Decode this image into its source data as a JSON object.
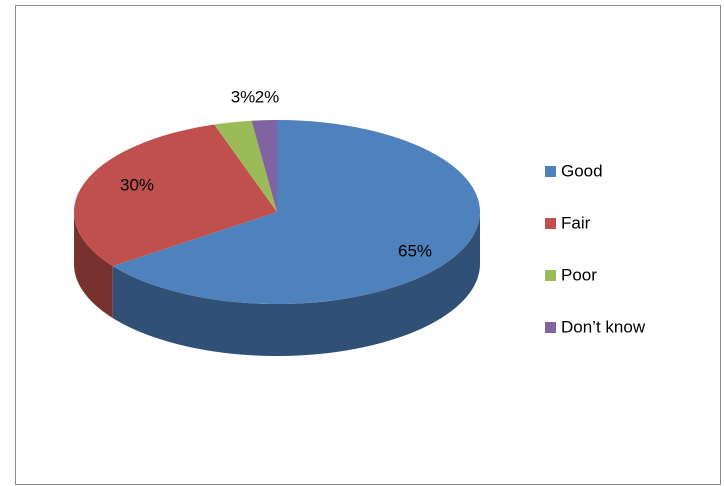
{
  "chart_data": {
    "type": "pie",
    "categories": [
      "Good",
      "Fair",
      "Poor",
      "Don’t know"
    ],
    "values": [
      65,
      30,
      3,
      2
    ],
    "value_labels": [
      "65%",
      "30%",
      "3%",
      "2%"
    ],
    "colors": [
      "#4f81bd",
      "#c0504d",
      "#9bbb59",
      "#8064a2"
    ],
    "legend": "right"
  }
}
